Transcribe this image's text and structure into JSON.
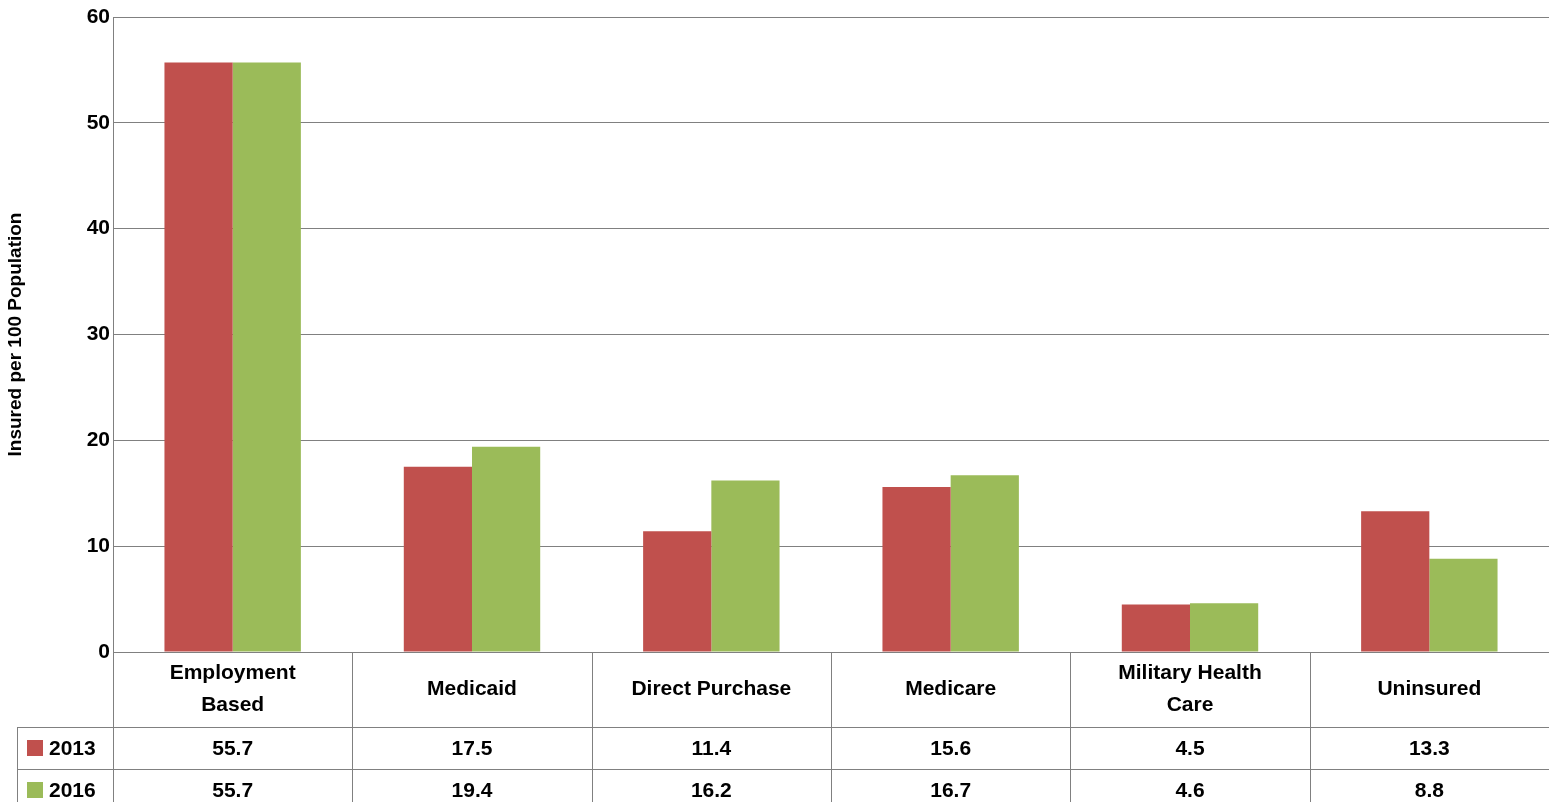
{
  "chart_data": {
    "type": "bar",
    "ylabel": "Insured per 100 Population",
    "categories": [
      "Employment Based",
      "Medicaid",
      "Direct Purchase",
      "Medicare",
      "Military Health Care",
      "Uninsured"
    ],
    "series": [
      {
        "name": "2013",
        "color": "#c0504d",
        "values": [
          55.7,
          17.5,
          11.4,
          15.6,
          4.5,
          13.3
        ]
      },
      {
        "name": "2016",
        "color": "#9bbb59",
        "values": [
          55.7,
          19.4,
          16.2,
          16.7,
          4.6,
          8.8
        ]
      }
    ],
    "ylim": [
      0,
      60
    ],
    "yticks": [
      0,
      10,
      20,
      30,
      40,
      50,
      60
    ],
    "grid": "y",
    "legend": "bottom left",
    "data_labels": true
  }
}
